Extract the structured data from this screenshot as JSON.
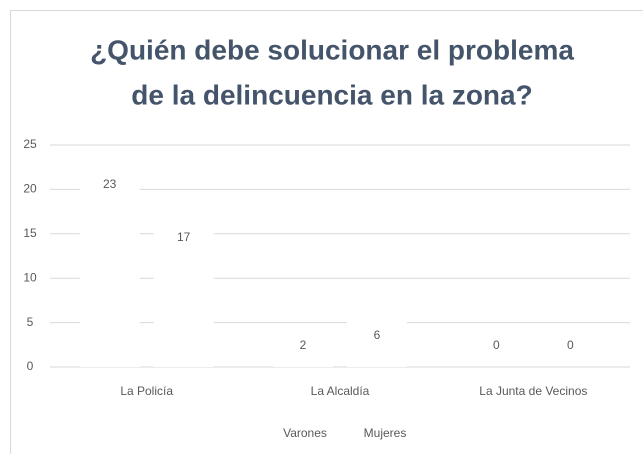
{
  "chart_data": {
    "type": "bar",
    "title": [
      "¿Quién debe solucionar el problema",
      "de la delincuencia en la zona?"
    ],
    "categories": [
      "La Policía",
      "La Alcaldía",
      "La Junta de Vecinos"
    ],
    "series": [
      {
        "name": "Varones",
        "color": "#ffffff",
        "values": [
          23,
          2,
          0
        ]
      },
      {
        "name": "Mujeres",
        "color": "#ffffff",
        "values": [
          17,
          6,
          0
        ]
      }
    ],
    "ylim": [
      0,
      25
    ],
    "yticks": [
      0,
      5,
      10,
      15,
      20,
      25
    ],
    "grid": true,
    "legend": "bottom"
  }
}
